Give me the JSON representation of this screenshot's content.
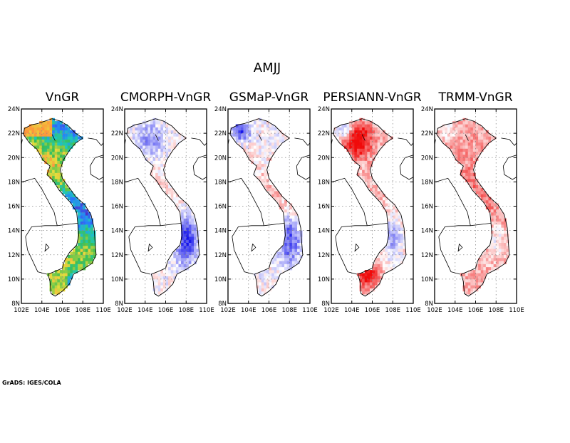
{
  "figure": {
    "title": "AMJJ",
    "credit": "GrADS: IGES/COLA"
  },
  "colors": {
    "frame": "#000000",
    "grid": "#888888",
    "coast": "#000000"
  },
  "axes": {
    "lon_ticks": [
      "102E",
      "104E",
      "106E",
      "108E",
      "110E"
    ],
    "lat_ticks": [
      "8N",
      "10N",
      "12N",
      "14N",
      "16N",
      "18N",
      "20N",
      "22N",
      "24N"
    ],
    "lon_range": [
      102,
      110
    ],
    "lat_range": [
      8,
      24
    ]
  },
  "chart_data": [
    {
      "type": "heatmap",
      "title": "VnGR",
      "colormap": "rainbow-precipitation",
      "dominant_colors": [
        "#ffa040",
        "#40c060",
        "#2090ff",
        "#5030c0"
      ]
    },
    {
      "type": "heatmap",
      "title": "CMORPH-VnGR",
      "colormap": "blue-white-red-difference",
      "pattern": "blue over central highlands and north; light red along central coast"
    },
    {
      "type": "heatmap",
      "title": "GSMaP-VnGR",
      "colormap": "blue-white-red-difference",
      "pattern": "blue in north-west and central highlands; light red scattered"
    },
    {
      "type": "heatmap",
      "title": "PERSIANN-VnGR",
      "colormap": "blue-white-red-difference",
      "pattern": "strong red over north and Mekong delta; blue in central highlands"
    },
    {
      "type": "heatmap",
      "title": "TRMM-VnGR",
      "colormap": "blue-white-red-difference",
      "pattern": "mostly light red; small blue patches in north and central highlands"
    }
  ]
}
